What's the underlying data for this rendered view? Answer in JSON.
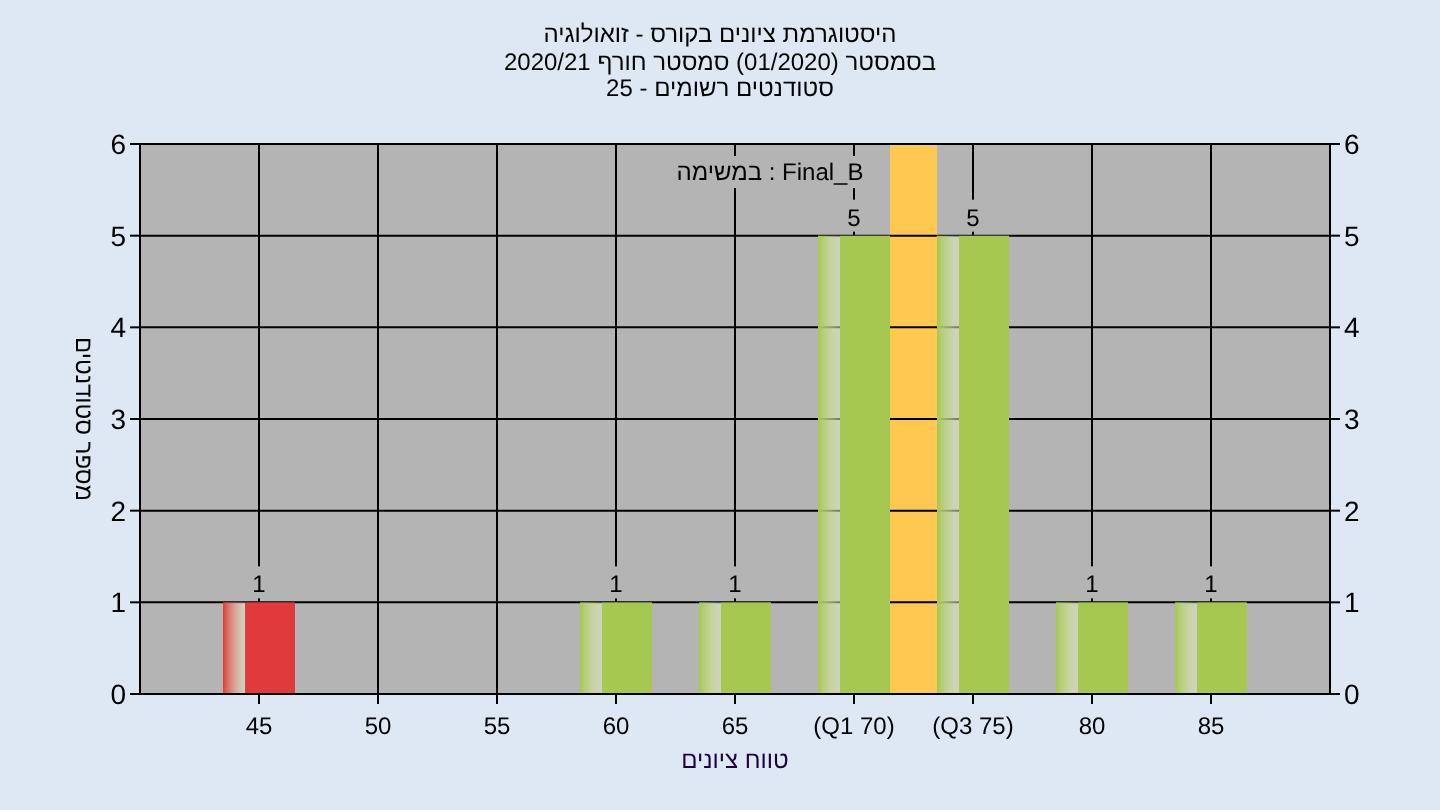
{
  "chart_data": {
    "type": "bar",
    "title": "היסטוגרמת ציונים בקורס - זואולוגיה",
    "subtitle": [
      "בסמסטר  (01/2020)  סמסטר חורף 2020/21",
      "סטודנטים רשומים - 25"
    ],
    "xlabel": "טווח ציונים",
    "ylabel": "מספר סטודנטים",
    "annotations": [
      "במשימה : Final_B"
    ],
    "categories": [
      "45",
      "50",
      "55",
      "60",
      "65",
      "(Q1 70)",
      "(Q3 75)",
      "80",
      "85"
    ],
    "values": [
      1,
      0,
      0,
      1,
      1,
      5,
      5,
      1,
      1
    ],
    "colors": [
      "#e03a3a",
      "#a6c850",
      "#a6c850",
      "#a6c850",
      "#a6c850",
      "#a6c850",
      "#a6c850",
      "#a6c850",
      "#a6c850"
    ],
    "value_labels": [
      "1",
      null,
      null,
      "1",
      "1",
      "5",
      "5",
      "1",
      "1"
    ],
    "bands": [
      {
        "axis": "x",
        "from": "(Q1 70)",
        "to": "(Q3 75)",
        "color": "#ffc850"
      }
    ],
    "ylim": [
      0,
      6
    ],
    "yticks": [
      0,
      1,
      2,
      3,
      4,
      5,
      6
    ],
    "y2lim": [
      0,
      6
    ],
    "y2ticks": [
      0,
      1,
      2,
      3,
      4,
      5,
      6
    ],
    "grid": true
  }
}
